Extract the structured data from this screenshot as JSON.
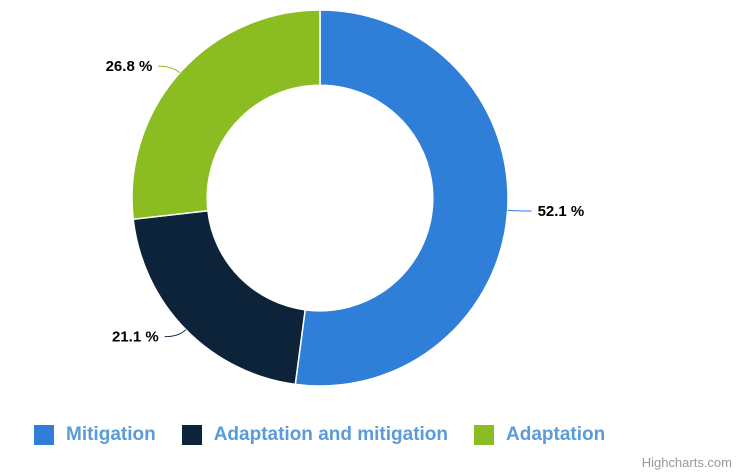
{
  "chart_data": {
    "type": "pie",
    "inner_size_ratio": 0.6,
    "start_angle_deg": 0,
    "slices": [
      {
        "name": "Mitigation",
        "value": 52.1,
        "label": "52.1 %",
        "color": "#2f7ed8"
      },
      {
        "name": "Adaptation and mitigation",
        "value": 21.1,
        "label": "21.1 %",
        "color": "#0d233a"
      },
      {
        "name": "Adaptation",
        "value": 26.8,
        "label": "26.8 %",
        "color": "#8bbc21"
      }
    ],
    "legend_placement": "bottom",
    "legend_text_color": "#5a9bd8"
  },
  "credits": "Highcharts.com"
}
